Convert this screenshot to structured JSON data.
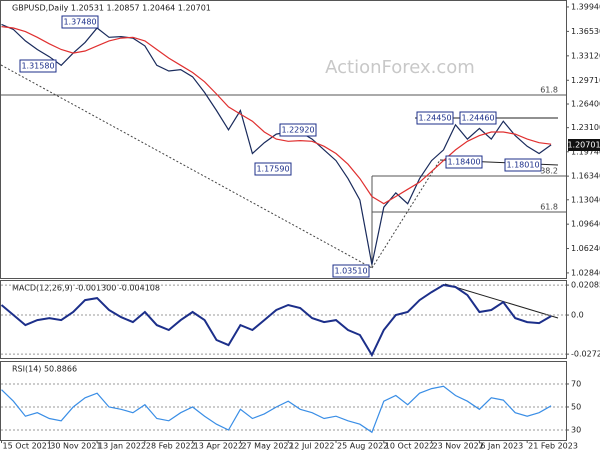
{
  "chart_data": [
    {
      "type": "line",
      "title": "GBPUSD,Daily  1.20531 1.20857 1.20464 1.20701",
      "watermark": "ActionForex.com",
      "x": [
        0,
        8,
        16,
        24,
        32,
        40,
        48,
        56,
        64,
        72,
        80,
        88,
        96,
        104,
        112,
        120,
        128,
        136,
        144,
        152,
        160,
        168,
        176,
        184,
        192,
        200,
        208,
        216,
        224,
        232,
        240,
        248,
        256,
        264,
        272,
        280,
        288,
        296,
        304,
        312,
        320,
        328,
        336,
        344,
        352,
        360,
        368
      ],
      "xlim": [
        -1,
        378
      ],
      "ylim": [
        1.0213,
        1.4077
      ],
      "yticks": [
        {
          "value": 1.3994,
          "label": "1.39940"
        },
        {
          "value": 1.3653,
          "label": "1.36530"
        },
        {
          "value": 1.3312,
          "label": "1.33120"
        },
        {
          "value": 1.2971,
          "label": "1.29710"
        },
        {
          "value": 1.264,
          "label": "1.26400"
        },
        {
          "value": 1.231,
          "label": "1.23100"
        },
        {
          "value": 1.1974,
          "label": "1.19740"
        },
        {
          "value": 1.1634,
          "label": "1.16340"
        },
        {
          "value": 1.1304,
          "label": "1.13040"
        },
        {
          "value": 1.0964,
          "label": "1.09640"
        },
        {
          "value": 1.0624,
          "label": "1.06240"
        },
        {
          "value": 1.0284,
          "label": "1.02840"
        }
      ],
      "series": [
        {
          "color": "#1a2b5c",
          "values": [
            1.375,
            1.368,
            1.352,
            1.34,
            1.33,
            1.318,
            1.335,
            1.35,
            1.37,
            1.357,
            1.358,
            1.356,
            1.345,
            1.318,
            1.31,
            1.312,
            1.302,
            1.28,
            1.255,
            1.228,
            1.255,
            1.195,
            1.21,
            1.222,
            1.225,
            1.225,
            1.215,
            1.2,
            1.185,
            1.16,
            1.13,
            1.04,
            1.12,
            1.14,
            1.125,
            1.16,
            1.185,
            1.2,
            1.235,
            1.215,
            1.23,
            1.215,
            1.24,
            1.22,
            1.205,
            1.195,
            1.207
          ]
        },
        {
          "color": "#e03030",
          "values": [
            1.372,
            1.37,
            1.365,
            1.357,
            1.348,
            1.34,
            1.335,
            1.338,
            1.345,
            1.352,
            1.356,
            1.357,
            1.352,
            1.34,
            1.328,
            1.318,
            1.308,
            1.295,
            1.278,
            1.26,
            1.25,
            1.24,
            1.225,
            1.215,
            1.212,
            1.213,
            1.212,
            1.205,
            1.195,
            1.18,
            1.16,
            1.135,
            1.125,
            1.135,
            1.145,
            1.155,
            1.17,
            1.185,
            1.2,
            1.212,
            1.22,
            1.225,
            1.225,
            1.222,
            1.215,
            1.21,
            1.208
          ]
        }
      ],
      "annotations": [
        "1.37480",
        "1.31580",
        "1.22920",
        "1.17590",
        "1.03510",
        "1.24450",
        "1.24460",
        "1.18400",
        "1.18010",
        "61.8",
        "61.8",
        "38.2",
        "1.20701"
      ]
    },
    {
      "type": "line",
      "title": "MACD(12,26,9) -0.001300 -0.004108",
      "x": [
        0,
        8,
        16,
        24,
        32,
        40,
        48,
        56,
        64,
        72,
        80,
        88,
        96,
        104,
        112,
        120,
        128,
        136,
        144,
        152,
        160,
        168,
        176,
        184,
        192,
        200,
        208,
        216,
        224,
        232,
        240,
        248,
        256,
        264,
        272,
        280,
        288,
        296,
        304,
        312,
        320,
        328,
        336,
        344,
        352,
        360,
        368
      ],
      "xlim": [
        -1,
        378
      ],
      "ylim": [
        -0.0299,
        0.0237
      ],
      "yticks": [
        0.020858,
        {
          "value": 0,
          "label": "0.0"
        },
        -0.027213
      ],
      "series": [
        {
          "color": "#1c2f8a",
          "values": [
            0.007,
            0,
            -0.007,
            -0.0035,
            -0.0021,
            -0.0035,
            0.0021,
            0.0104,
            0.0118,
            0.0035,
            -0.0014,
            -0.0049,
            0.0021,
            -0.007,
            -0.0104,
            -0.0035,
            0.0021,
            -0.0035,
            -0.0174,
            -0.0209,
            -0.007,
            -0.0104,
            -0.0035,
            0.0035,
            0.007,
            0.0049,
            -0.0021,
            -0.0049,
            -0.0035,
            -0.0104,
            -0.0139,
            -0.0278,
            -0.0104,
            0,
            0.0021,
            0.0104,
            0.016,
            0.0209,
            0.0195,
            0.0139,
            0.0021,
            0.0035,
            0.009,
            -0.0021,
            -0.0049,
            -0.0056,
            -0.0007
          ]
        }
      ]
    },
    {
      "type": "line",
      "title": "RSI(14) 50.8866",
      "x": [
        0,
        8,
        16,
        24,
        32,
        40,
        48,
        56,
        64,
        72,
        80,
        88,
        96,
        104,
        112,
        120,
        128,
        136,
        144,
        152,
        160,
        168,
        176,
        184,
        192,
        200,
        208,
        216,
        224,
        232,
        240,
        248,
        256,
        264,
        272,
        280,
        288,
        296,
        304,
        312,
        320,
        328,
        336,
        344,
        352,
        360,
        368
      ],
      "xlim": [
        -1,
        378
      ],
      "ylim": [
        21.3,
        89.1
      ],
      "yticks": [
        70,
        50,
        30
      ],
      "xticks": [
        {
          "value": 0,
          "label": "15 Oct 2021"
        },
        {
          "value": 32,
          "label": "30 Nov 2021"
        },
        {
          "value": 64,
          "label": "13 Jan 2022"
        },
        {
          "value": 96,
          "label": "28 Feb 2022"
        },
        {
          "value": 128,
          "label": "13 Apr 2022"
        },
        {
          "value": 160,
          "label": "27 May 2022"
        },
        {
          "value": 192,
          "label": "12 Jul 2022"
        },
        {
          "value": 224,
          "label": "25 Aug 2022"
        },
        {
          "value": 256,
          "label": "10 Oct 2022"
        },
        {
          "value": 288,
          "label": "23 Nov 2022"
        },
        {
          "value": 320,
          "label": "6 Jan 2023"
        },
        {
          "value": 352,
          "label": "21 Feb 2023"
        }
      ],
      "series": [
        {
          "color": "#3a8ee6",
          "values": [
            65,
            55,
            42,
            45,
            40,
            38,
            50,
            58,
            62,
            50,
            48,
            45,
            52,
            40,
            38,
            45,
            50,
            42,
            35,
            30,
            48,
            40,
            44,
            50,
            55,
            48,
            45,
            40,
            42,
            38,
            35,
            28,
            55,
            60,
            52,
            62,
            66,
            68,
            60,
            55,
            48,
            58,
            56,
            45,
            42,
            45,
            51
          ]
        }
      ]
    }
  ]
}
